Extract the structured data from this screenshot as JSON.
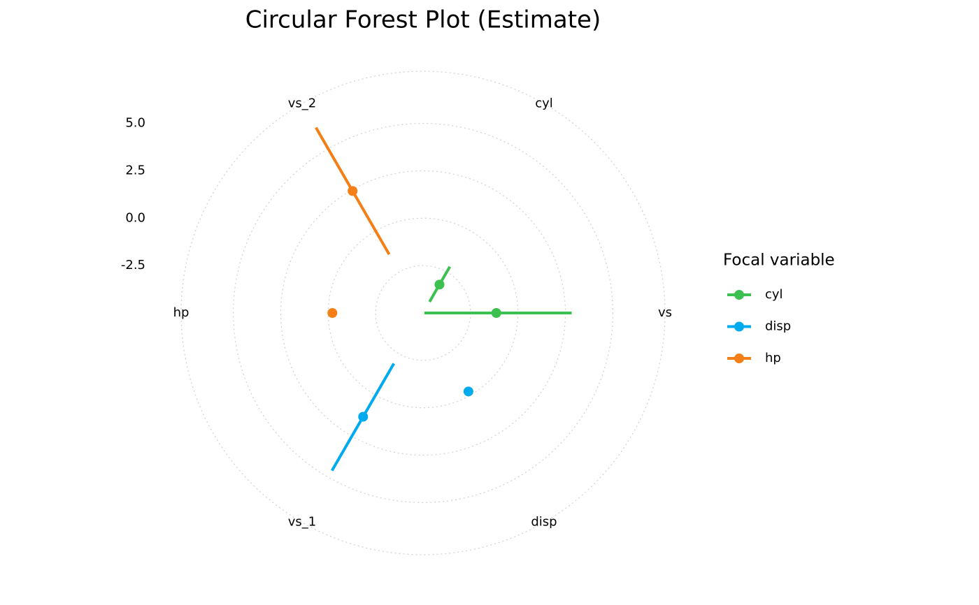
{
  "chart_data": {
    "type": "polar-forest",
    "title": "Circular Forest Plot (Estimate)",
    "categories": [
      "vs",
      "cyl",
      "vs_2",
      "hp",
      "vs_1",
      "disp"
    ],
    "ylim": [
      -5,
      7.75
    ],
    "yticks": [
      {
        "value": -2.5,
        "label": "-2.5"
      },
      {
        "value": 0,
        "label": "0.0"
      },
      {
        "value": 2.5,
        "label": "2.5"
      },
      {
        "value": 5,
        "label": "5.0"
      }
    ],
    "grid": true,
    "legend_title": "Focal variable",
    "series": [
      {
        "name": "cyl",
        "color": "#3cc04f",
        "values": [
          -1.14,
          -3.27,
          null,
          null,
          null,
          null
        ],
        "lower": [
          -4.93,
          -4.32,
          null,
          null,
          null,
          null
        ],
        "upper": [
          2.83,
          -2.18,
          null,
          null,
          null,
          null
        ]
      },
      {
        "name": "disp",
        "color": "#00aaee",
        "values": [
          null,
          null,
          null,
          null,
          1.32,
          -0.22
        ],
        "lower": [
          null,
          null,
          null,
          null,
          -1.92,
          null
        ],
        "upper": [
          null,
          null,
          null,
          null,
          4.6,
          null
        ]
      },
      {
        "name": "hp",
        "color": "#f47f17",
        "values": [
          null,
          null,
          2.43,
          -0.22,
          null,
          null
        ],
        "lower": [
          null,
          null,
          -1.43,
          null,
          null,
          null
        ],
        "upper": [
          null,
          null,
          6.29,
          null,
          null,
          null
        ]
      }
    ]
  }
}
